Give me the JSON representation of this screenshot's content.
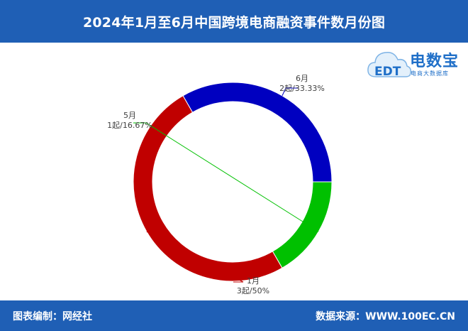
{
  "header": {
    "title": "2024年1月至6月中国跨境电商融资事件数月份图"
  },
  "footer": {
    "left": "图表编制：网经社",
    "right": "数据来源：WWW.100EC.CN"
  },
  "logo": {
    "name": "电数宝",
    "sub": "电商大数据库",
    "mark": "EDT"
  },
  "chart_data": {
    "type": "pie",
    "style": "donut",
    "title": "2024年1月至6月中国跨境电商融资事件数月份图",
    "slices": [
      {
        "label": "6月",
        "value": 2,
        "percent": "33.33%",
        "display": "2起/33.33%",
        "color": "#0000c0"
      },
      {
        "label": "1月",
        "value": 3,
        "percent": "50%",
        "display": "3起/50%",
        "color": "#c00000"
      },
      {
        "label": "5月",
        "value": 1,
        "percent": "16.67%",
        "display": "1起/16.67%",
        "color": "#00c000"
      }
    ],
    "legend": "none"
  }
}
